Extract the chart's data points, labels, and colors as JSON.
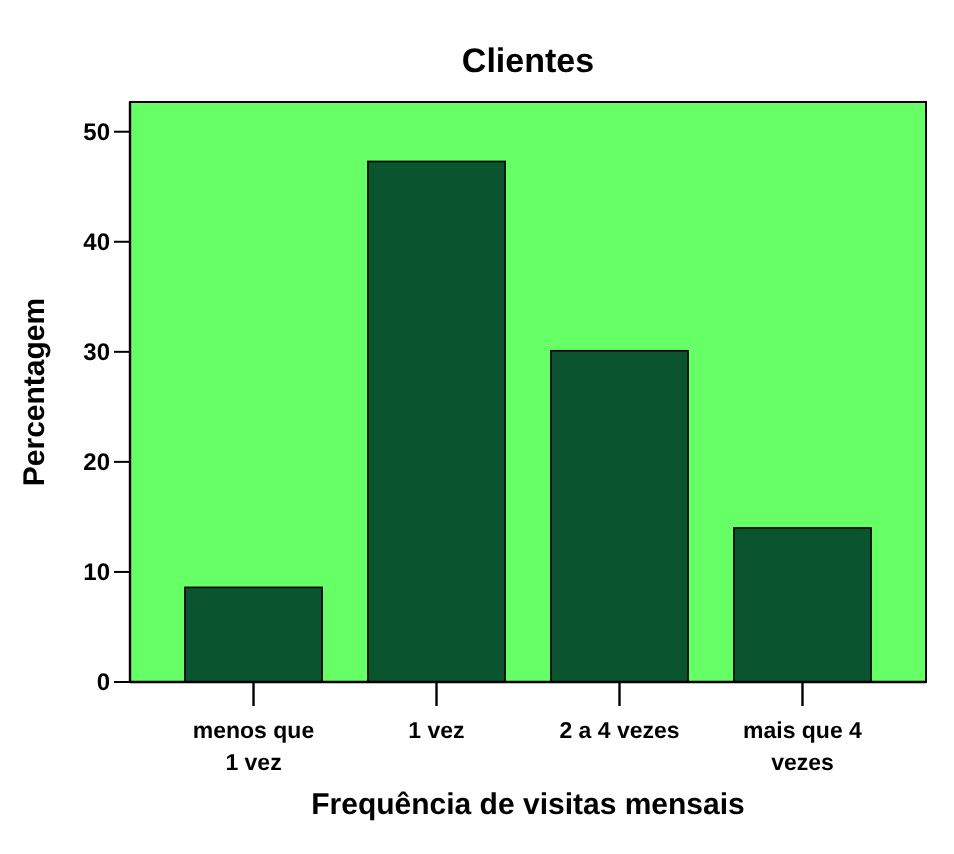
{
  "chart_data": {
    "type": "bar",
    "title": "Clientes",
    "xlabel": "Frequência de visitas mensais",
    "ylabel": "Percentagem",
    "categories": [
      "menos que 1 vez",
      "1 vez",
      "2 a 4 vezes",
      "mais que 4 vezes"
    ],
    "values": [
      8.6,
      47.3,
      30.1,
      14.0
    ],
    "color": "#0a5530",
    "ylim": [
      0,
      52.7
    ],
    "yticks": [
      0,
      10,
      20,
      30,
      40,
      50
    ],
    "grid": false
  }
}
